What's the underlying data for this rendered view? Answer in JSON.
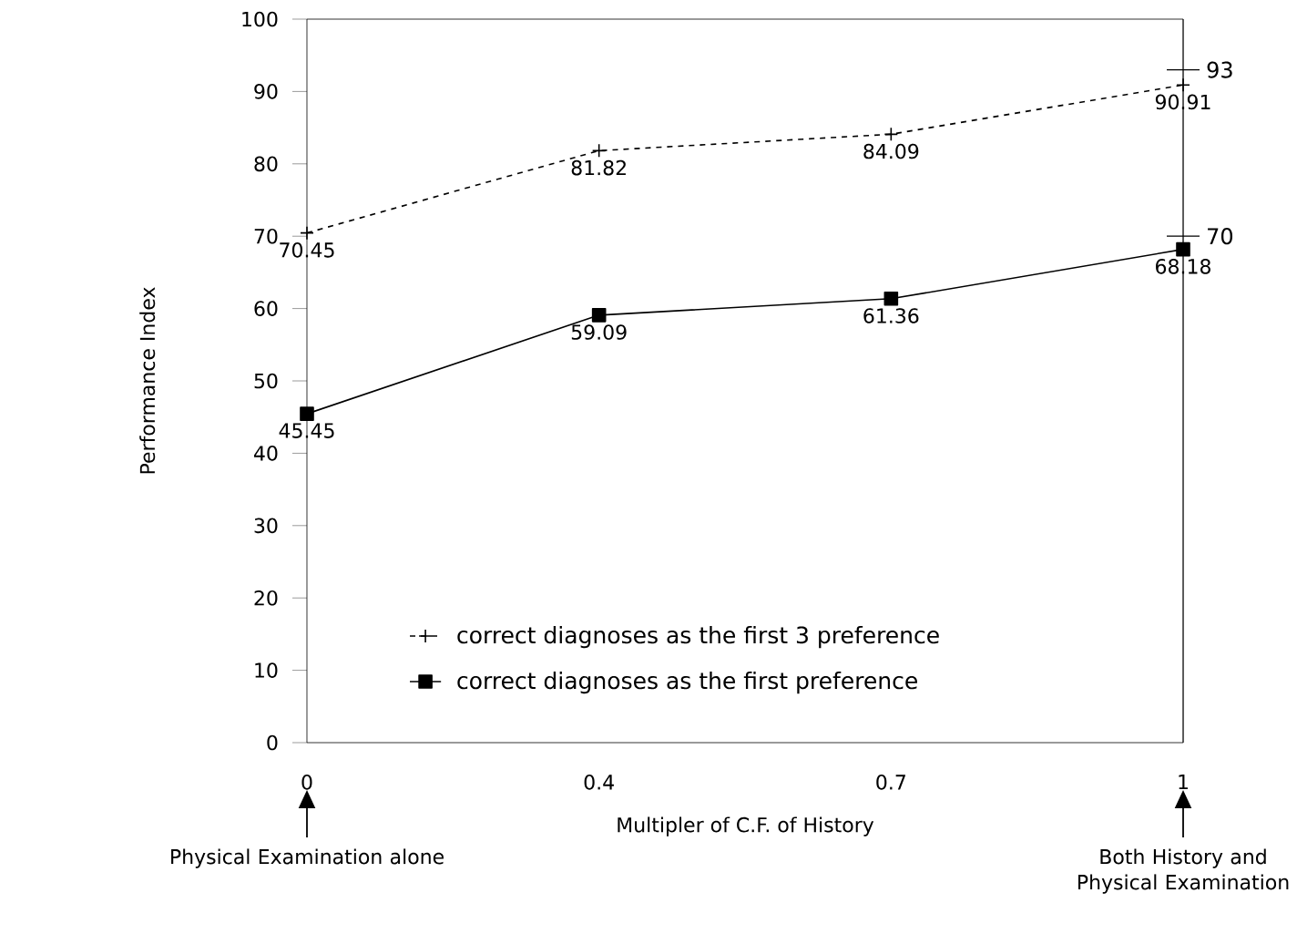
{
  "chart_data": {
    "type": "line",
    "xlabel": "Multipler of C.F. of History",
    "ylabel": "Performance Index",
    "categories": [
      "0",
      "0.4",
      "0.7",
      "1"
    ],
    "series": [
      {
        "name": "correct diagnoses as the first 3 preference",
        "color": "#000000",
        "values": [
          70.45,
          81.82,
          84.09,
          90.91
        ],
        "marker": "cross",
        "line_style": "dashed"
      },
      {
        "name": "correct diagnoses as the first preference",
        "color": "#000000",
        "values": [
          45.45,
          59.09,
          61.36,
          68.18
        ],
        "marker": "square",
        "line_style": "solid"
      }
    ],
    "ylim": [
      0,
      100
    ],
    "yticks": [
      0,
      10,
      20,
      30,
      40,
      50,
      60,
      70,
      80,
      90,
      100
    ],
    "data_labels": true,
    "legend": "bottom",
    "grid": false,
    "y2lim": [
      0,
      100
    ],
    "y2ticks": [
      70,
      93
    ],
    "annotations": [
      "Physical Examination alone",
      "Both History and Physical Examination"
    ]
  }
}
